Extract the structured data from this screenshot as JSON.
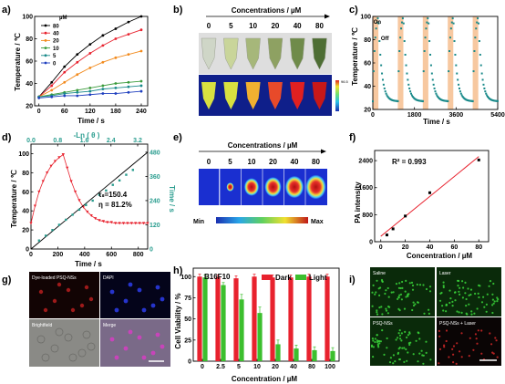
{
  "panels": {
    "a": {
      "letter": "a)",
      "unit": "µM",
      "legend": [
        "80",
        "40",
        "20",
        "10",
        "5",
        "0"
      ],
      "ylabel": "Temperature / ℃",
      "xlabel": "Time / s",
      "yticks": [
        "20",
        "40",
        "60",
        "80",
        "100"
      ],
      "xticks": [
        "0",
        "60",
        "120",
        "180",
        "240"
      ],
      "colors": [
        "#000000",
        "#e8222e",
        "#f28a1c",
        "#3a9a3a",
        "#1a8a8a",
        "#1f3fbf"
      ]
    },
    "b": {
      "letter": "b)",
      "title": "Concentrations / µM",
      "cols": [
        "0",
        "5",
        "10",
        "20",
        "40",
        "80"
      ],
      "scale_max": "96.5"
    },
    "c": {
      "letter": "c)",
      "ylabel": "Temperature / ℃",
      "xlabel": "Time / s",
      "yticks": [
        "20",
        "40",
        "60",
        "80",
        "100"
      ],
      "xticks": [
        "0",
        "1800",
        "3600",
        "5400"
      ],
      "on_label": "On",
      "off_label": "Off",
      "color": "#1a8a8a",
      "band": "#f7c8a0"
    },
    "d": {
      "letter": "d)",
      "ylabel": "Temperature / ℃",
      "ylabel2": "Time / s",
      "xlabel": "Time / s",
      "topxlabel": "-Ln ( θ )",
      "yticks": [
        "0",
        "20",
        "40",
        "60",
        "80",
        "100"
      ],
      "yticks2": [
        "0",
        "120",
        "240",
        "360",
        "480"
      ],
      "xticks": [
        "0",
        "200",
        "400",
        "600",
        "800"
      ],
      "topxticks": [
        "0.0",
        "0.8",
        "1.6",
        "2.4",
        "3.2"
      ],
      "tau": "τₛ=150.4",
      "eta": "η = 81.2%",
      "teal": "#2a9d8f"
    },
    "e": {
      "letter": "e)",
      "title": "Concentrations / µM",
      "cols": [
        "0",
        "5",
        "10",
        "20",
        "40",
        "80"
      ],
      "min_label": "Min",
      "max_label": "Max"
    },
    "f": {
      "letter": "f)",
      "ylabel": "PA intensity",
      "xlabel": "Concentration / µM",
      "r2": "R² = 0.993",
      "yticks": [
        "0",
        "800",
        "1600",
        "2400"
      ],
      "xticks": [
        "0",
        "20",
        "40",
        "60",
        "80"
      ]
    },
    "g": {
      "letter": "g)",
      "labels": [
        "Dye-loaded  PSQ-NSs",
        "DAPI",
        "Brightfield",
        "Merge"
      ]
    },
    "h": {
      "letter": "h)",
      "title": "B16F10",
      "ylabel": "Cell Viability / %",
      "xlabel": "Concentration / µM",
      "legend": [
        "Dark",
        "Light"
      ],
      "yticks": [
        "0",
        "25",
        "50",
        "75",
        "100"
      ],
      "categories": [
        "0",
        "2.5",
        "5",
        "10",
        "20",
        "40",
        "80",
        "100"
      ],
      "dark_color": "#e8222e",
      "light_color": "#3cbf2e"
    },
    "i": {
      "letter": "i)",
      "labels": [
        "Saline",
        "Laser",
        "PSQ-NSs",
        "PSQ-NSs + Laser"
      ]
    }
  },
  "chart_data": [
    {
      "type": "line",
      "panel": "a",
      "x": [
        0,
        30,
        60,
        90,
        120,
        150,
        180,
        210,
        240
      ],
      "xlabel": "Time / s",
      "ylabel": "Temperature / ℃",
      "xlim": [
        -10,
        255
      ],
      "ylim": [
        20,
        100
      ],
      "series": [
        {
          "name": "80",
          "values": [
            28,
            41,
            55,
            66,
            75,
            83,
            89,
            95,
            100
          ]
        },
        {
          "name": "40",
          "values": [
            28,
            38,
            50,
            59,
            67,
            74,
            80,
            84,
            88
          ]
        },
        {
          "name": "20",
          "values": [
            28,
            34,
            41,
            48,
            54,
            59,
            63,
            66,
            69
          ]
        },
        {
          "name": "10",
          "values": [
            28,
            30,
            32,
            34,
            36,
            38,
            40,
            41,
            42
          ]
        },
        {
          "name": "5",
          "values": [
            28,
            29,
            31,
            32,
            33,
            35,
            36,
            37,
            38
          ]
        },
        {
          "name": "0",
          "values": [
            27,
            28,
            29,
            29,
            30,
            31,
            31,
            32,
            33
          ]
        }
      ]
    },
    {
      "type": "line",
      "panel": "c",
      "xlabel": "Time / s",
      "ylabel": "Temperature / ℃",
      "xlim": [
        0,
        5400
      ],
      "ylim": [
        20,
        100
      ],
      "cycles": 5,
      "period": 1080,
      "on_duration": 240,
      "base": 27,
      "peak": 100
    },
    {
      "type": "scatter",
      "panel": "d",
      "xlabel": "Time / s",
      "ylabel": "Temperature / ℃",
      "xlim": [
        0,
        870
      ],
      "ylim": [
        0,
        110
      ],
      "series": [
        {
          "name": "heating",
          "x": [
            0,
            30,
            60,
            90,
            120,
            150,
            180,
            210,
            240
          ],
          "values": [
            27,
            45,
            60,
            71,
            80,
            87,
            92,
            96,
            99
          ]
        },
        {
          "name": "cooling",
          "x": [
            240,
            270,
            300,
            330,
            360,
            390,
            420,
            450,
            480,
            510,
            540,
            570,
            600,
            630,
            660,
            690,
            720,
            750,
            780,
            810,
            840,
            870
          ],
          "values": [
            99,
            85,
            71,
            60,
            51,
            44,
            39,
            35,
            32,
            30,
            29,
            28,
            28,
            27,
            27,
            27,
            27,
            27,
            27,
            27,
            27,
            27
          ]
        }
      ],
      "fit": {
        "x": [
          0,
          870
        ],
        "y2": [
          0,
          480
        ]
      },
      "teal_points": {
        "x": [
          60,
          110,
          160,
          210,
          260,
          310,
          360,
          410,
          460,
          510,
          560,
          610,
          660,
          710,
          760
        ],
        "y2": [
          42,
          66,
          94,
          120,
          145,
          170,
          195,
          218,
          240,
          268,
          290,
          318,
          340,
          368,
          392
        ]
      }
    },
    {
      "type": "scatter",
      "panel": "f",
      "xlabel": "Concentration / µM",
      "ylabel": "PA intensity",
      "xlim": [
        -5,
        88
      ],
      "ylim": [
        0,
        2700
      ],
      "x": [
        5,
        10,
        20,
        40,
        80
      ],
      "values": [
        200,
        380,
        760,
        1450,
        2420
      ],
      "fit": {
        "x": [
          0,
          80
        ],
        "y": [
          160,
          2520
        ]
      }
    },
    {
      "type": "bar",
      "panel": "h",
      "xlabel": "Concentration / µM",
      "ylabel": "Cell Viability / %",
      "ylim": [
        0,
        110
      ],
      "categories": [
        "0",
        "2.5",
        "5",
        "10",
        "20",
        "40",
        "80",
        "100"
      ],
      "series": [
        {
          "name": "Dark",
          "values": [
            100,
            99,
            98,
            100,
            99,
            99,
            100,
            100
          ]
        },
        {
          "name": "Light",
          "values": [
            99,
            90,
            73,
            57,
            20,
            15,
            13,
            12
          ]
        }
      ],
      "errors": [
        [
          3,
          3,
          3,
          3,
          3,
          3,
          3,
          3
        ],
        [
          3,
          3,
          6,
          7,
          5,
          4,
          4,
          4
        ]
      ]
    }
  ]
}
